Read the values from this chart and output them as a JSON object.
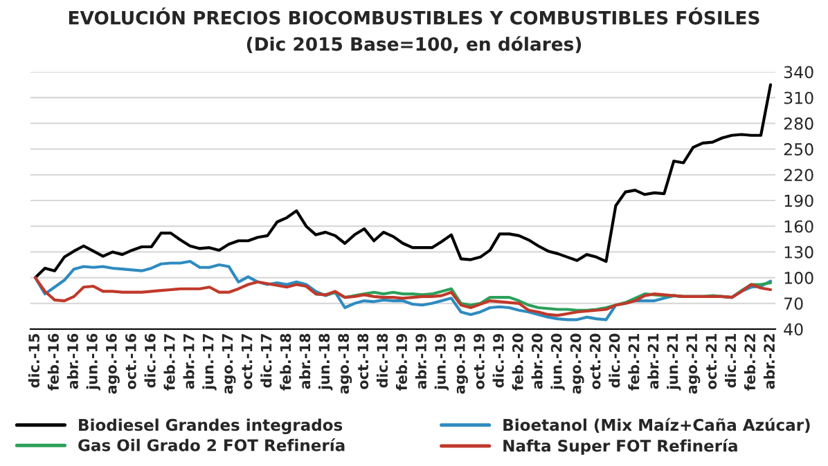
{
  "chart_data": {
    "type": "line",
    "title": "EVOLUCIÓN PRECIOS BIOCOMBUSTIBLES Y COMBUSTIBLES FÓSILES",
    "subtitle": "(Dic 2015 Base=100, en dólares)",
    "categories": [
      "dic.-15",
      null,
      "feb.-16",
      null,
      "abr.-16",
      null,
      "jun.-16",
      null,
      "ago.-16",
      null,
      "oct.-16",
      null,
      "dic.-16",
      null,
      "feb.-17",
      null,
      "abr.-17",
      null,
      "jun.-17",
      null,
      "ago.-17",
      null,
      "oct.-17",
      null,
      "dic.-17",
      null,
      "feb.-18",
      null,
      "abr.-18",
      null,
      "jun.-18",
      null,
      "ago.-18",
      null,
      "oct.-18",
      null,
      "dic.-18",
      null,
      "feb.-19",
      null,
      "abr.-19",
      null,
      "jun.-19",
      null,
      "ago.-19",
      null,
      "oct.-19",
      null,
      "dic.-19",
      null,
      "feb.-20",
      null,
      "abr.-20",
      null,
      "jun.-20",
      null,
      "ago.-20",
      null,
      "oct.-20",
      null,
      "dic.-20",
      null,
      "feb.-21",
      null,
      "abr.-21",
      null,
      "jun.-21",
      null,
      "ago.-21",
      null,
      "oct.-21",
      null,
      "dic.-21",
      null,
      "feb.-22",
      null,
      "abr.-22"
    ],
    "series": [
      {
        "name": "Biodiesel Grandes integrados",
        "color": "#000000",
        "values": [
          100,
          111,
          108,
          124,
          131,
          137,
          131,
          125,
          130,
          127,
          132,
          136,
          136,
          152,
          152,
          144,
          137,
          134,
          135,
          132,
          139,
          143,
          143,
          147,
          149,
          165,
          170,
          178,
          160,
          150,
          153,
          149,
          140,
          150,
          157,
          143,
          153,
          148,
          140,
          135,
          135,
          135,
          142,
          150,
          122,
          121,
          124,
          132,
          151,
          151,
          149,
          144,
          137,
          131,
          128,
          124,
          120,
          127,
          124,
          119,
          184,
          200,
          202,
          197,
          199,
          198,
          236,
          234,
          252,
          257,
          258,
          263,
          266,
          267,
          266,
          266,
          325
        ]
      },
      {
        "name": "Bioetanol (Mix Maíz+Caña Azúcar)",
        "color": "#2e8bc0",
        "values": [
          100,
          81,
          89,
          97,
          110,
          113,
          112,
          113,
          111,
          110,
          109,
          108,
          111,
          116,
          117,
          117,
          119,
          112,
          112,
          115,
          113,
          95,
          101,
          95,
          92,
          94,
          92,
          95,
          92,
          84,
          79,
          83,
          65,
          70,
          73,
          72,
          74,
          73,
          73,
          69,
          68,
          70,
          73,
          76,
          60,
          57,
          60,
          65,
          66,
          65,
          62,
          60,
          57,
          54,
          52,
          51,
          51,
          54,
          52,
          51,
          68,
          70,
          73,
          73,
          73,
          76,
          79,
          78,
          78,
          78,
          78,
          78,
          77,
          84,
          89,
          90,
          96
        ]
      },
      {
        "name": "Gas Oil Grado 2 FOT Refinería",
        "color": "#2ca05a",
        "values": [
          null,
          null,
          null,
          null,
          null,
          null,
          null,
          null,
          null,
          null,
          null,
          null,
          null,
          null,
          null,
          null,
          null,
          null,
          null,
          null,
          null,
          null,
          null,
          null,
          null,
          null,
          null,
          null,
          null,
          81,
          80,
          83,
          77,
          79,
          81,
          83,
          81,
          83,
          81,
          81,
          80,
          81,
          84,
          87,
          70,
          68,
          70,
          77,
          77,
          77,
          73,
          68,
          65,
          64,
          63,
          63,
          62,
          62,
          63,
          65,
          68,
          71,
          76,
          81,
          80,
          79,
          79,
          78,
          78,
          78,
          79,
          78,
          77,
          85,
          92,
          92,
          94
        ]
      },
      {
        "name": "Nafta Super FOT Refinería",
        "color": "#c0392b",
        "values": [
          100,
          84,
          74,
          73,
          78,
          89,
          90,
          84,
          84,
          83,
          83,
          83,
          84,
          85,
          86,
          87,
          87,
          87,
          89,
          83,
          83,
          87,
          92,
          95,
          93,
          91,
          89,
          92,
          90,
          81,
          80,
          84,
          77,
          78,
          80,
          78,
          77,
          77,
          76,
          77,
          78,
          78,
          79,
          83,
          68,
          65,
          69,
          73,
          72,
          71,
          70,
          62,
          60,
          57,
          56,
          58,
          60,
          61,
          62,
          63,
          68,
          70,
          73,
          79,
          81,
          80,
          79,
          78,
          78,
          78,
          78,
          78,
          77,
          84,
          92,
          88,
          86
        ]
      }
    ],
    "ylim": [
      40,
      340
    ],
    "yticks": [
      40,
      70,
      100,
      130,
      160,
      190,
      220,
      250,
      280,
      310,
      340
    ],
    "grid": "y",
    "legend": "bottom"
  }
}
